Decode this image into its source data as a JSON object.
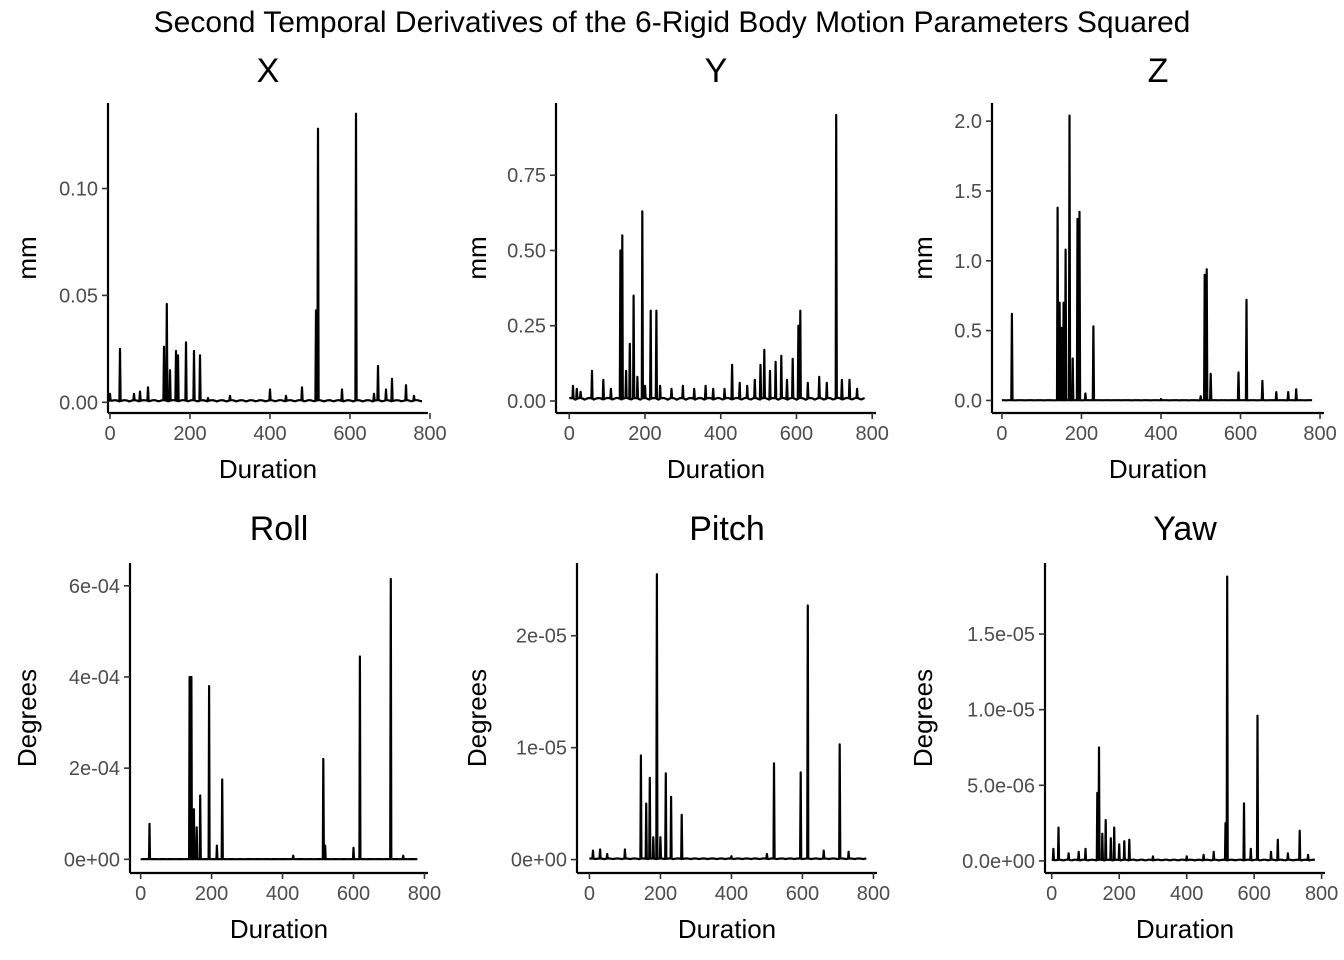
{
  "title": "Second Temporal Derivatives of the 6-Rigid Body Motion Parameters Squared",
  "chart_data": [
    {
      "type": "line",
      "title": "X",
      "xlabel": "Duration",
      "ylabel": "mm",
      "xlim": [
        -5,
        795
      ],
      "ylim": [
        -0.005,
        0.14
      ],
      "xticks": [
        0,
        200,
        400,
        600,
        800
      ],
      "xtick_labels": [
        "0",
        "200",
        "400",
        "600",
        "800"
      ],
      "yticks": [
        0,
        0.05,
        0.1
      ],
      "ytick_labels": [
        "0.00",
        "0.05",
        "0.10"
      ],
      "baseline": 0.001,
      "x_max": 780,
      "peaks": [
        [
          0,
          0.004
        ],
        [
          25,
          0.025
        ],
        [
          60,
          0.004
        ],
        [
          75,
          0.005
        ],
        [
          95,
          0.007
        ],
        [
          135,
          0.026
        ],
        [
          142,
          0.046
        ],
        [
          150,
          0.015
        ],
        [
          165,
          0.024
        ],
        [
          170,
          0.022
        ],
        [
          190,
          0.028
        ],
        [
          210,
          0.024
        ],
        [
          225,
          0.022
        ],
        [
          245,
          0.002
        ],
        [
          300,
          0.003
        ],
        [
          400,
          0.006
        ],
        [
          440,
          0.003
        ],
        [
          480,
          0.007
        ],
        [
          515,
          0.043
        ],
        [
          520,
          0.128
        ],
        [
          580,
          0.006
        ],
        [
          615,
          0.135
        ],
        [
          660,
          0.004
        ],
        [
          670,
          0.017
        ],
        [
          690,
          0.006
        ],
        [
          705,
          0.011
        ],
        [
          740,
          0.008
        ],
        [
          760,
          0.003
        ]
      ]
    },
    {
      "type": "line",
      "title": "Y",
      "xlabel": "Duration",
      "ylabel": "mm",
      "xlim": [
        -35,
        810
      ],
      "ylim": [
        -0.04,
        0.99
      ],
      "xticks": [
        0,
        200,
        400,
        600,
        800
      ],
      "xtick_labels": [
        "0",
        "200",
        "400",
        "600",
        "800"
      ],
      "yticks": [
        0,
        0.25,
        0.5,
        0.75
      ],
      "ytick_labels": [
        "0.00",
        "0.25",
        "0.50",
        "0.75"
      ],
      "baseline": 0.01,
      "x_max": 780,
      "peaks": [
        [
          10,
          0.05
        ],
        [
          20,
          0.04
        ],
        [
          30,
          0.03
        ],
        [
          60,
          0.1
        ],
        [
          90,
          0.07
        ],
        [
          110,
          0.04
        ],
        [
          135,
          0.5
        ],
        [
          140,
          0.55
        ],
        [
          150,
          0.1
        ],
        [
          160,
          0.19
        ],
        [
          170,
          0.35
        ],
        [
          180,
          0.08
        ],
        [
          193,
          0.63
        ],
        [
          200,
          0.05
        ],
        [
          215,
          0.3
        ],
        [
          230,
          0.3
        ],
        [
          240,
          0.05
        ],
        [
          270,
          0.04
        ],
        [
          300,
          0.05
        ],
        [
          330,
          0.04
        ],
        [
          360,
          0.05
        ],
        [
          380,
          0.04
        ],
        [
          410,
          0.04
        ],
        [
          430,
          0.12
        ],
        [
          450,
          0.06
        ],
        [
          470,
          0.05
        ],
        [
          490,
          0.07
        ],
        [
          505,
          0.12
        ],
        [
          515,
          0.17
        ],
        [
          530,
          0.1
        ],
        [
          545,
          0.13
        ],
        [
          560,
          0.15
        ],
        [
          575,
          0.07
        ],
        [
          590,
          0.14
        ],
        [
          605,
          0.25
        ],
        [
          610,
          0.3
        ],
        [
          630,
          0.06
        ],
        [
          660,
          0.08
        ],
        [
          680,
          0.06
        ],
        [
          705,
          0.95
        ],
        [
          720,
          0.07
        ],
        [
          740,
          0.07
        ],
        [
          760,
          0.04
        ]
      ]
    },
    {
      "type": "line",
      "title": "Z",
      "xlabel": "Duration",
      "ylabel": "mm",
      "xlim": [
        -25,
        810
      ],
      "ylim": [
        -0.09,
        2.13
      ],
      "xticks": [
        0,
        200,
        400,
        600,
        800
      ],
      "xtick_labels": [
        "0",
        "200",
        "400",
        "600",
        "800"
      ],
      "yticks": [
        0,
        0.5,
        1,
        1.5,
        2
      ],
      "ytick_labels": [
        "0.0",
        "0.5",
        "1.0",
        "1.5",
        "2.0"
      ],
      "baseline": 0.002,
      "x_max": 780,
      "peaks": [
        [
          25,
          0.62
        ],
        [
          140,
          1.38
        ],
        [
          145,
          0.7
        ],
        [
          150,
          0.52
        ],
        [
          155,
          0.7
        ],
        [
          160,
          1.08
        ],
        [
          170,
          2.04
        ],
        [
          178,
          0.3
        ],
        [
          190,
          1.3
        ],
        [
          195,
          1.35
        ],
        [
          210,
          0.05
        ],
        [
          230,
          0.53
        ],
        [
          400,
          0.01
        ],
        [
          500,
          0.03
        ],
        [
          510,
          0.9
        ],
        [
          515,
          0.94
        ],
        [
          525,
          0.19
        ],
        [
          595,
          0.2
        ],
        [
          615,
          0.72
        ],
        [
          655,
          0.14
        ],
        [
          690,
          0.06
        ],
        [
          720,
          0.06
        ],
        [
          740,
          0.08
        ]
      ]
    },
    {
      "type": "line",
      "title": "Roll",
      "xlabel": "Duration",
      "ylabel": "Degrees",
      "xlim": [
        -30,
        810
      ],
      "ylim": [
        -3e-05,
        0.00065
      ],
      "xticks": [
        0,
        200,
        400,
        600,
        800
      ],
      "xtick_labels": [
        "0",
        "200",
        "400",
        "600",
        "800"
      ],
      "yticks": [
        0,
        0.0002,
        0.0004,
        0.0006
      ],
      "ytick_labels": [
        "0e+00",
        "2e-04",
        "4e-04",
        "6e-04"
      ],
      "baseline": 5e-07,
      "x_max": 780,
      "peaks": [
        [
          25,
          7.8e-05
        ],
        [
          138,
          0.0004
        ],
        [
          143,
          0.0004
        ],
        [
          150,
          0.00011
        ],
        [
          158,
          7e-05
        ],
        [
          168,
          0.00014
        ],
        [
          193,
          0.00038
        ],
        [
          215,
          3e-05
        ],
        [
          230,
          0.000175
        ],
        [
          430,
          8e-06
        ],
        [
          515,
          0.00022
        ],
        [
          520,
          3e-05
        ],
        [
          600,
          2.5e-05
        ],
        [
          618,
          0.000445
        ],
        [
          705,
          0.000615
        ],
        [
          740,
          8e-06
        ]
      ]
    },
    {
      "type": "line",
      "title": "Pitch",
      "xlabel": "Duration",
      "ylabel": "Degrees",
      "xlim": [
        -35,
        810
      ],
      "ylim": [
        -1.2e-06,
        2.65e-05
      ],
      "xticks": [
        0,
        200,
        400,
        600,
        800
      ],
      "xtick_labels": [
        "0",
        "200",
        "400",
        "600",
        "800"
      ],
      "yticks": [
        0,
        1e-05,
        2e-05
      ],
      "ytick_labels": [
        "0e+00",
        "1e-05",
        "2e-05"
      ],
      "baseline": 1e-07,
      "x_max": 780,
      "peaks": [
        [
          10,
          8e-07
        ],
        [
          30,
          9e-07
        ],
        [
          50,
          5e-07
        ],
        [
          100,
          9e-07
        ],
        [
          145,
          9.3e-06
        ],
        [
          160,
          5e-06
        ],
        [
          170,
          7.3e-06
        ],
        [
          180,
          2e-06
        ],
        [
          190,
          2.55e-05
        ],
        [
          200,
          2e-06
        ],
        [
          215,
          7.7e-06
        ],
        [
          230,
          5.6e-06
        ],
        [
          260,
          4e-06
        ],
        [
          400,
          3e-07
        ],
        [
          500,
          5e-07
        ],
        [
          520,
          8.6e-06
        ],
        [
          595,
          7.8e-06
        ],
        [
          615,
          2.27e-05
        ],
        [
          660,
          8e-07
        ],
        [
          705,
          1.03e-05
        ],
        [
          730,
          7e-07
        ]
      ]
    },
    {
      "type": "line",
      "title": "Yaw",
      "xlabel": "Duration",
      "ylabel": "Degrees",
      "xlim": [
        -20,
        810
      ],
      "ylim": [
        -8e-07,
        1.97e-05
      ],
      "xticks": [
        0,
        200,
        400,
        600,
        800
      ],
      "xtick_labels": [
        "0",
        "200",
        "400",
        "600",
        "800"
      ],
      "yticks": [
        0,
        5e-06,
        1e-05,
        1.5e-05
      ],
      "ytick_labels": [
        "0.0e+00",
        "5.0e-06",
        "1.0e-05",
        "1.5e-05"
      ],
      "baseline": 8e-08,
      "x_max": 780,
      "peaks": [
        [
          5,
          8e-07
        ],
        [
          20,
          2.2e-06
        ],
        [
          50,
          5e-07
        ],
        [
          80,
          6e-07
        ],
        [
          100,
          8e-07
        ],
        [
          135,
          4.5e-06
        ],
        [
          140,
          7.5e-06
        ],
        [
          150,
          1.8e-06
        ],
        [
          160,
          2.7e-06
        ],
        [
          175,
          1.5e-06
        ],
        [
          185,
          2.2e-06
        ],
        [
          200,
          1.1e-06
        ],
        [
          215,
          1.3e-06
        ],
        [
          230,
          1.4e-06
        ],
        [
          300,
          3e-07
        ],
        [
          400,
          3e-07
        ],
        [
          450,
          4e-07
        ],
        [
          480,
          6e-07
        ],
        [
          515,
          2.5e-06
        ],
        [
          520,
          1.88e-05
        ],
        [
          570,
          3.8e-06
        ],
        [
          590,
          8e-07
        ],
        [
          610,
          9.6e-06
        ],
        [
          650,
          6e-07
        ],
        [
          670,
          1.4e-06
        ],
        [
          700,
          5e-07
        ],
        [
          735,
          2e-06
        ],
        [
          760,
          4e-07
        ]
      ]
    }
  ]
}
